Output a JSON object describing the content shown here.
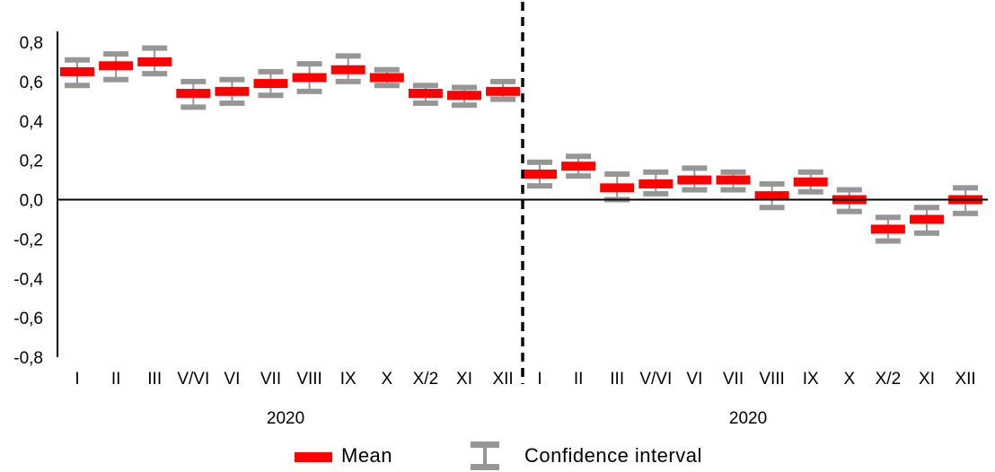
{
  "chart_data": {
    "type": "errorbar",
    "ylim": [
      -0.8,
      0.8
    ],
    "yticks": [
      "0,8",
      "0,6",
      "0,4",
      "0,2",
      "0,0",
      "-0,2",
      "-0,4",
      "-0,6",
      "-0,8"
    ],
    "ytick_values": [
      0.8,
      0.6,
      0.4,
      0.2,
      0.0,
      -0.2,
      -0.4,
      -0.6,
      -0.8
    ],
    "groups": [
      {
        "label": "2020",
        "categories": [
          "I",
          "II",
          "III",
          "V/VI",
          "VI",
          "VII",
          "VIII",
          "IX",
          "X",
          "X/2",
          "XI",
          "XII"
        ],
        "mean": [
          0.65,
          0.68,
          0.7,
          0.54,
          0.55,
          0.59,
          0.62,
          0.66,
          0.62,
          0.54,
          0.53,
          0.55
        ],
        "ci_low": [
          0.58,
          0.61,
          0.64,
          0.47,
          0.49,
          0.53,
          0.55,
          0.6,
          0.58,
          0.49,
          0.48,
          0.51
        ],
        "ci_high": [
          0.71,
          0.74,
          0.77,
          0.6,
          0.61,
          0.65,
          0.69,
          0.73,
          0.66,
          0.58,
          0.57,
          0.6
        ]
      },
      {
        "label": "2020",
        "categories": [
          "I",
          "II",
          "III",
          "V/VI",
          "VI",
          "VII",
          "VIII",
          "IX",
          "X",
          "X/2",
          "XI",
          "XII"
        ],
        "mean": [
          0.13,
          0.17,
          0.06,
          0.08,
          0.1,
          0.1,
          0.02,
          0.09,
          0.0,
          -0.15,
          -0.1,
          0.0
        ],
        "ci_low": [
          0.07,
          0.12,
          0.0,
          0.03,
          0.05,
          0.05,
          -0.04,
          0.04,
          -0.06,
          -0.21,
          -0.17,
          -0.07
        ],
        "ci_high": [
          0.19,
          0.22,
          0.13,
          0.14,
          0.16,
          0.14,
          0.08,
          0.14,
          0.05,
          -0.09,
          -0.04,
          0.06
        ]
      }
    ],
    "legend": [
      {
        "label": "Mean",
        "color": "#ff0000"
      },
      {
        "label": "Confidence interval",
        "color": "#969696"
      }
    ],
    "colors": {
      "mean": "#ff0000",
      "ci": "#969696",
      "axis": "#000000"
    }
  }
}
